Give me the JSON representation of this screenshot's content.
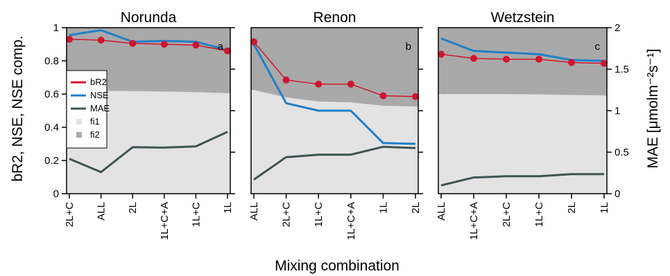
{
  "colors": {
    "fi1": "#e3e3e3",
    "fi2": "#a9a9a9",
    "bR2": "#d0142c",
    "NSE": "#1f7fc8",
    "MAE": "#3d5452"
  },
  "chart_data": {
    "type": "line",
    "xlabel": "Mixing combination",
    "ylabel_left": "bR2, NSE, NSE comp.",
    "ylabel_right": "MAE [μmolm⁻²s⁻¹]",
    "ylim_left": [
      0,
      1
    ],
    "ylim_right": [
      0,
      2
    ],
    "yticks_left": [
      "0",
      "0.2",
      "0.4",
      "0.6",
      "0.8",
      "1"
    ],
    "yticks_right": [
      "0",
      "0.5",
      "1",
      "1.5",
      "2"
    ],
    "legend": {
      "placement": "left, inside panel a",
      "entries": [
        "bR2",
        "NSE",
        "MAE",
        "fi1",
        "fi2"
      ]
    },
    "panels": [
      {
        "title": "Norunda",
        "label": "a",
        "categories": [
          "2L+C",
          "ALL",
          "2L",
          "1L+C+A",
          "1L+C",
          "1L"
        ],
        "series": [
          {
            "name": "bR2",
            "axis": "left",
            "values": [
              0.93,
              0.925,
              0.905,
              0.9,
              0.895,
              0.86
            ]
          },
          {
            "name": "NSE",
            "axis": "left",
            "values": [
              0.955,
              0.985,
              0.915,
              0.92,
              0.915,
              0.865
            ]
          },
          {
            "name": "MAE",
            "axis": "right",
            "values": [
              0.42,
              0.26,
              0.56,
              0.555,
              0.57,
              0.745
            ]
          },
          {
            "name": "fi1",
            "axis": "left",
            "values": [
              0.62,
              0.62,
              0.618,
              0.615,
              0.612,
              0.605
            ]
          }
        ]
      },
      {
        "title": "Renon",
        "label": "b",
        "categories": [
          "ALL",
          "2L+C",
          "1L+C",
          "1L+C+A",
          "1L",
          "2L"
        ],
        "series": [
          {
            "name": "bR2",
            "axis": "left",
            "values": [
              0.915,
              0.685,
              0.66,
              0.66,
              0.59,
              0.585
            ]
          },
          {
            "name": "NSE",
            "axis": "left",
            "values": [
              0.9,
              0.545,
              0.5,
              0.5,
              0.305,
              0.3
            ]
          },
          {
            "name": "MAE",
            "axis": "right",
            "values": [
              0.17,
              0.44,
              0.47,
              0.47,
              0.565,
              0.55
            ]
          },
          {
            "name": "fi1",
            "axis": "left",
            "values": [
              0.625,
              0.58,
              0.555,
              0.55,
              0.53,
              0.525
            ]
          }
        ]
      },
      {
        "title": "Wetzstein",
        "label": "c",
        "categories": [
          "ALL",
          "1L+C+A",
          "2L+C",
          "1L+C",
          "2L",
          "1L"
        ],
        "series": [
          {
            "name": "bR2",
            "axis": "left",
            "values": [
              0.84,
              0.815,
              0.81,
              0.81,
              0.79,
              0.785
            ]
          },
          {
            "name": "NSE",
            "axis": "left",
            "values": [
              0.935,
              0.86,
              0.85,
              0.84,
              0.805,
              0.8
            ]
          },
          {
            "name": "MAE",
            "axis": "right",
            "values": [
              0.1,
              0.195,
              0.21,
              0.21,
              0.235,
              0.235
            ]
          },
          {
            "name": "fi1",
            "axis": "left",
            "values": [
              0.6,
              0.6,
              0.6,
              0.598,
              0.595,
              0.592
            ]
          }
        ]
      }
    ]
  }
}
